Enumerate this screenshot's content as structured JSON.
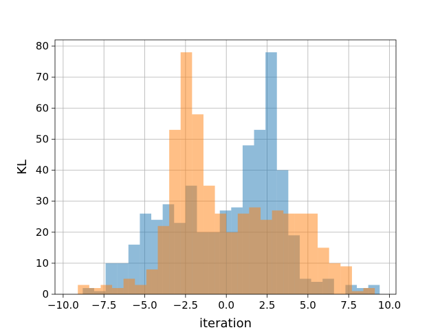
{
  "chart_data": {
    "type": "bar",
    "title": "",
    "xlabel": "iteration",
    "ylabel": "KL",
    "xlim": [
      -10.5,
      10.4
    ],
    "ylim": [
      0,
      82
    ],
    "grid": true,
    "xticks": [
      -10.0,
      -7.5,
      -5.0,
      -2.5,
      0.0,
      2.5,
      5.0,
      7.5,
      10.0
    ],
    "xtick_labels": [
      "−10.0",
      "−7.5",
      "−5.0",
      "−2.5",
      "0.0",
      "2.5",
      "5.0",
      "7.5",
      "10.0"
    ],
    "yticks": [
      0,
      10,
      20,
      30,
      40,
      50,
      60,
      70,
      80
    ],
    "ytick_labels": [
      "0",
      "10",
      "20",
      "30",
      "40",
      "50",
      "60",
      "70",
      "80"
    ],
    "series": [
      {
        "color": "#1f77b4",
        "alpha": 0.5,
        "bins": [
          {
            "x0": -8.8,
            "x1": -8.1,
            "y": 2
          },
          {
            "x0": -8.1,
            "x1": -7.4,
            "y": 1
          },
          {
            "x0": -7.4,
            "x1": -6.7,
            "y": 10
          },
          {
            "x0": -6.7,
            "x1": -6.0,
            "y": 10
          },
          {
            "x0": -6.0,
            "x1": -5.3,
            "y": 16
          },
          {
            "x0": -5.3,
            "x1": -4.6,
            "y": 26
          },
          {
            "x0": -4.6,
            "x1": -3.9,
            "y": 24
          },
          {
            "x0": -3.9,
            "x1": -3.2,
            "y": 29
          },
          {
            "x0": -3.2,
            "x1": -2.5,
            "y": 23
          },
          {
            "x0": -2.5,
            "x1": -1.8,
            "y": 35
          },
          {
            "x0": -1.8,
            "x1": -1.1,
            "y": 20
          },
          {
            "x0": -1.1,
            "x1": -0.4,
            "y": 20
          },
          {
            "x0": -0.4,
            "x1": 0.3,
            "y": 27
          },
          {
            "x0": 0.3,
            "x1": 1.0,
            "y": 28
          },
          {
            "x0": 1.0,
            "x1": 1.7,
            "y": 48
          },
          {
            "x0": 1.7,
            "x1": 2.4,
            "y": 53
          },
          {
            "x0": 2.4,
            "x1": 3.1,
            "y": 78
          },
          {
            "x0": 3.1,
            "x1": 3.8,
            "y": 40
          },
          {
            "x0": 3.8,
            "x1": 4.5,
            "y": 19
          },
          {
            "x0": 4.5,
            "x1": 5.2,
            "y": 5
          },
          {
            "x0": 5.2,
            "x1": 5.9,
            "y": 4
          },
          {
            "x0": 5.9,
            "x1": 6.6,
            "y": 5
          },
          {
            "x0": 6.6,
            "x1": 7.3,
            "y": 0
          },
          {
            "x0": 7.3,
            "x1": 8.0,
            "y": 3
          },
          {
            "x0": 8.0,
            "x1": 8.7,
            "y": 2
          },
          {
            "x0": 8.7,
            "x1": 9.4,
            "y": 3
          }
        ]
      },
      {
        "color": "#ff7f0e",
        "alpha": 0.5,
        "bins": [
          {
            "x0": -9.1,
            "x1": -8.4,
            "y": 3
          },
          {
            "x0": -8.4,
            "x1": -7.7,
            "y": 2
          },
          {
            "x0": -7.7,
            "x1": -7.0,
            "y": 3
          },
          {
            "x0": -7.0,
            "x1": -6.3,
            "y": 2
          },
          {
            "x0": -6.3,
            "x1": -5.6,
            "y": 5
          },
          {
            "x0": -5.6,
            "x1": -4.9,
            "y": 3
          },
          {
            "x0": -4.9,
            "x1": -4.2,
            "y": 8
          },
          {
            "x0": -4.2,
            "x1": -3.5,
            "y": 22
          },
          {
            "x0": -3.5,
            "x1": -2.8,
            "y": 53
          },
          {
            "x0": -2.8,
            "x1": -2.1,
            "y": 78
          },
          {
            "x0": -2.1,
            "x1": -1.4,
            "y": 58
          },
          {
            "x0": -1.4,
            "x1": -0.7,
            "y": 35
          },
          {
            "x0": -0.7,
            "x1": 0.0,
            "y": 26
          },
          {
            "x0": 0.0,
            "x1": 0.7,
            "y": 20
          },
          {
            "x0": 0.7,
            "x1": 1.4,
            "y": 26
          },
          {
            "x0": 1.4,
            "x1": 2.1,
            "y": 28
          },
          {
            "x0": 2.1,
            "x1": 2.8,
            "y": 24
          },
          {
            "x0": 2.8,
            "x1": 3.5,
            "y": 27
          },
          {
            "x0": 3.5,
            "x1": 4.2,
            "y": 26
          },
          {
            "x0": 4.2,
            "x1": 4.9,
            "y": 26
          },
          {
            "x0": 4.9,
            "x1": 5.6,
            "y": 26
          },
          {
            "x0": 5.6,
            "x1": 6.3,
            "y": 15
          },
          {
            "x0": 6.3,
            "x1": 7.0,
            "y": 10
          },
          {
            "x0": 7.0,
            "x1": 7.7,
            "y": 9
          },
          {
            "x0": 7.7,
            "x1": 8.4,
            "y": 1
          },
          {
            "x0": 8.4,
            "x1": 9.1,
            "y": 2
          }
        ]
      }
    ]
  }
}
